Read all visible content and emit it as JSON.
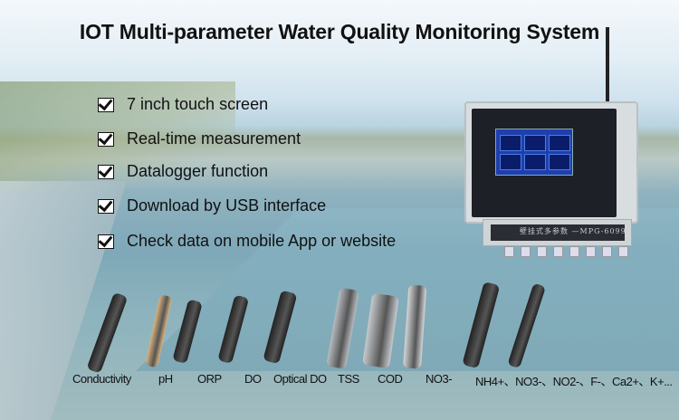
{
  "title": "IOT Multi-parameter Water Quality Monitoring System",
  "features": [
    {
      "label": "7 inch touch screen",
      "checked": true
    },
    {
      "label": "Real-time measurement",
      "checked": true
    },
    {
      "label": "Datalogger function",
      "checked": true
    },
    {
      "label": "Download by USB interface",
      "checked": true
    },
    {
      "label": "Check data on mobile App or website",
      "checked": true
    }
  ],
  "device": {
    "model_text": "壁挂式多参数 —MPG-6099"
  },
  "sensors": [
    {
      "label": "Conductivity",
      "color": "#222222"
    },
    {
      "label": "pH",
      "color": "#d9b27a"
    },
    {
      "label": "ORP",
      "color": "#222222"
    },
    {
      "label": "DO",
      "color": "#222222"
    },
    {
      "label": "Optical DO",
      "color": "#222222"
    },
    {
      "label": "TSS",
      "color": "#b8bcc0"
    },
    {
      "label": "COD",
      "color": "#c6cacd"
    },
    {
      "label": "NO3-",
      "color": "#d4d6d8"
    },
    {
      "label": "NH4+、NO3-、NO2-、F-、Ca2+、K+...",
      "color": "#222222"
    }
  ]
}
